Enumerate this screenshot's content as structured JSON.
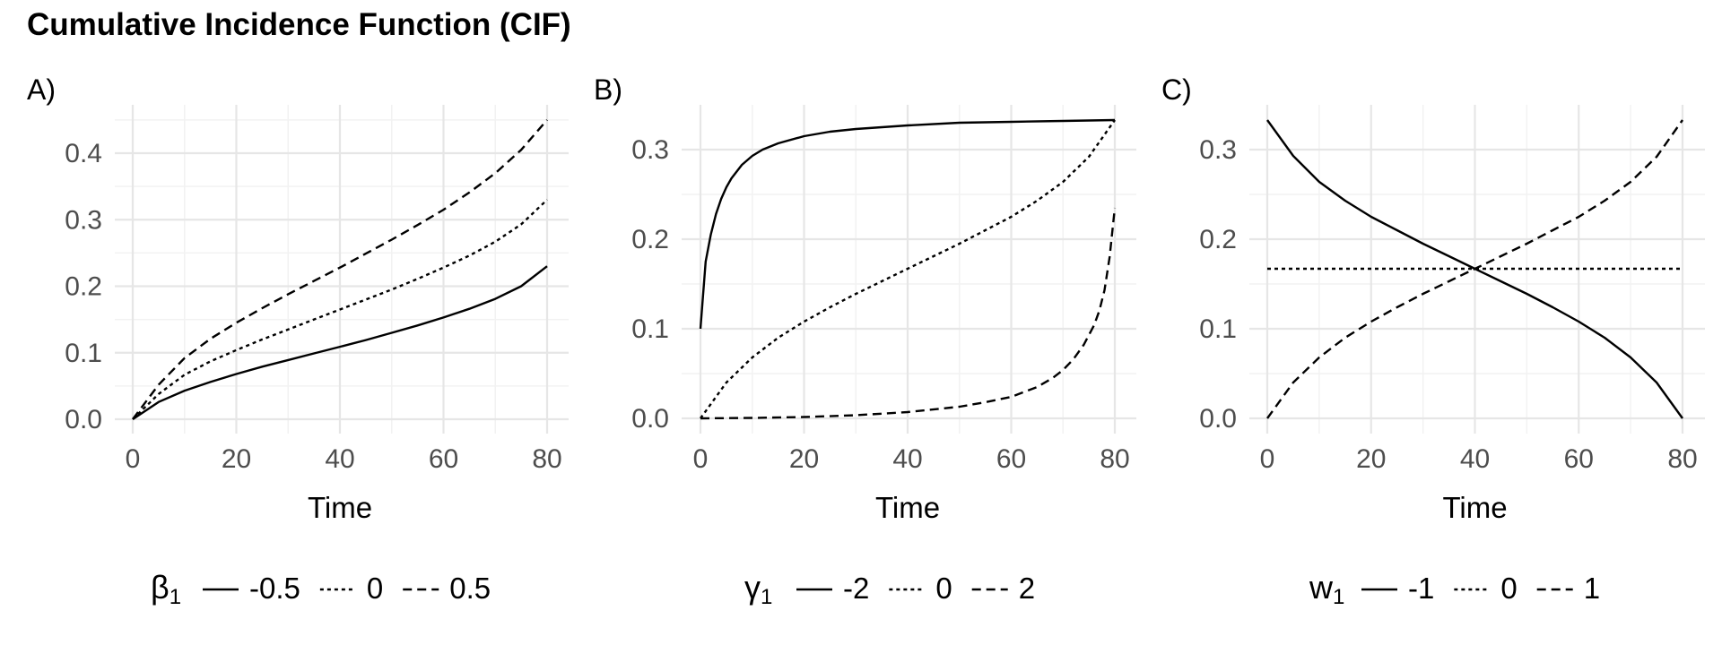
{
  "title": "Cumulative Incidence Function (CIF)",
  "chart_data": [
    {
      "type": "line",
      "panel_label": "A)",
      "xlabel": "Time",
      "ylabel": "",
      "xlim": [
        0,
        80
      ],
      "ylim": [
        0,
        0.45
      ],
      "x_ticks": [
        0,
        20,
        40,
        60,
        80
      ],
      "y_ticks": [
        0.0,
        0.1,
        0.2,
        0.3,
        0.4
      ],
      "y_tick_labels": [
        "0.0",
        "0.1",
        "0.2",
        "0.3",
        "0.4"
      ],
      "grid": true,
      "legend": {
        "position": "bottom",
        "title_symbol": "β",
        "title_subscript": "1",
        "entries": [
          "-0.5",
          "0",
          "0.5"
        ]
      },
      "series": [
        {
          "name": "-0.5",
          "dash": "solid",
          "x": [
            0,
            5,
            10,
            15,
            20,
            25,
            30,
            35,
            40,
            45,
            50,
            55,
            60,
            65,
            70,
            75,
            80
          ],
          "y": [
            0,
            0.026,
            0.043,
            0.056,
            0.068,
            0.079,
            0.089,
            0.099,
            0.109,
            0.119,
            0.13,
            0.141,
            0.153,
            0.166,
            0.181,
            0.2,
            0.23
          ]
        },
        {
          "name": "0",
          "dash": "dotted",
          "x": [
            0,
            5,
            10,
            15,
            20,
            25,
            30,
            35,
            40,
            45,
            50,
            55,
            60,
            65,
            70,
            75,
            80
          ],
          "y": [
            0,
            0.038,
            0.067,
            0.087,
            0.104,
            0.12,
            0.135,
            0.15,
            0.165,
            0.18,
            0.195,
            0.211,
            0.228,
            0.246,
            0.267,
            0.293,
            0.33
          ]
        },
        {
          "name": "0.5",
          "dash": "dashed",
          "x": [
            0,
            5,
            10,
            15,
            20,
            25,
            30,
            35,
            40,
            45,
            50,
            55,
            60,
            65,
            70,
            75,
            80
          ],
          "y": [
            0,
            0.052,
            0.092,
            0.121,
            0.145,
            0.167,
            0.188,
            0.208,
            0.228,
            0.249,
            0.27,
            0.292,
            0.315,
            0.341,
            0.37,
            0.405,
            0.45
          ]
        }
      ]
    },
    {
      "type": "line",
      "panel_label": "B)",
      "xlabel": "Time",
      "ylabel": "",
      "xlim": [
        0,
        80
      ],
      "ylim": [
        0,
        0.333
      ],
      "x_ticks": [
        0,
        20,
        40,
        60,
        80
      ],
      "y_ticks": [
        0.0,
        0.1,
        0.2,
        0.3
      ],
      "y_tick_labels": [
        "0.0",
        "0.1",
        "0.2",
        "0.3"
      ],
      "grid": true,
      "legend": {
        "position": "bottom",
        "title_symbol": "γ",
        "title_subscript": "1",
        "entries": [
          "-2",
          "0",
          "2"
        ]
      },
      "series": [
        {
          "name": "-2",
          "dash": "solid",
          "x": [
            0,
            1,
            2,
            3,
            4,
            5,
            6,
            8,
            10,
            12,
            15,
            20,
            25,
            30,
            40,
            50,
            60,
            70,
            80
          ],
          "y": [
            0.1,
            0.175,
            0.205,
            0.228,
            0.245,
            0.258,
            0.268,
            0.283,
            0.293,
            0.3,
            0.307,
            0.315,
            0.32,
            0.323,
            0.327,
            0.33,
            0.331,
            0.332,
            0.333
          ]
        },
        {
          "name": "0",
          "dash": "dotted",
          "x": [
            0,
            5,
            10,
            15,
            20,
            25,
            30,
            35,
            40,
            45,
            50,
            55,
            60,
            65,
            70,
            75,
            80
          ],
          "y": [
            0,
            0.04,
            0.068,
            0.09,
            0.108,
            0.124,
            0.139,
            0.153,
            0.167,
            0.181,
            0.195,
            0.21,
            0.225,
            0.243,
            0.264,
            0.292,
            0.333
          ]
        },
        {
          "name": "2",
          "dash": "dashed",
          "x": [
            0,
            10,
            20,
            30,
            40,
            50,
            55,
            60,
            65,
            68,
            70,
            72,
            74,
            76,
            77,
            78,
            79,
            80
          ],
          "y": [
            0,
            0.0005,
            0.0015,
            0.0035,
            0.007,
            0.013,
            0.018,
            0.024,
            0.035,
            0.045,
            0.054,
            0.066,
            0.082,
            0.104,
            0.12,
            0.143,
            0.18,
            0.235
          ]
        }
      ]
    },
    {
      "type": "line",
      "panel_label": "C)",
      "xlabel": "Time",
      "ylabel": "",
      "xlim": [
        0,
        80
      ],
      "ylim": [
        0,
        0.333
      ],
      "x_ticks": [
        0,
        20,
        40,
        60,
        80
      ],
      "y_ticks": [
        0.0,
        0.1,
        0.2,
        0.3
      ],
      "y_tick_labels": [
        "0.0",
        "0.1",
        "0.2",
        "0.3"
      ],
      "grid": true,
      "legend": {
        "position": "bottom",
        "title_symbol": "w",
        "title_subscript": "1",
        "entries": [
          "-1",
          "0",
          "1"
        ]
      },
      "series": [
        {
          "name": "-1",
          "dash": "solid",
          "x": [
            0,
            5,
            10,
            15,
            20,
            25,
            30,
            35,
            40,
            45,
            50,
            55,
            60,
            65,
            70,
            75,
            80
          ],
          "y": [
            0.333,
            0.293,
            0.264,
            0.243,
            0.225,
            0.21,
            0.195,
            0.181,
            0.167,
            0.153,
            0.139,
            0.124,
            0.108,
            0.09,
            0.068,
            0.04,
            0
          ]
        },
        {
          "name": "0",
          "dash": "dotted",
          "x": [
            0,
            80
          ],
          "y": [
            0.167,
            0.167
          ]
        },
        {
          "name": "1",
          "dash": "dashed",
          "x": [
            0,
            5,
            10,
            15,
            20,
            25,
            30,
            35,
            40,
            45,
            50,
            55,
            60,
            65,
            70,
            75,
            80
          ],
          "y": [
            0,
            0.04,
            0.068,
            0.09,
            0.108,
            0.124,
            0.139,
            0.153,
            0.167,
            0.181,
            0.195,
            0.21,
            0.225,
            0.243,
            0.264,
            0.292,
            0.333
          ]
        }
      ]
    }
  ]
}
